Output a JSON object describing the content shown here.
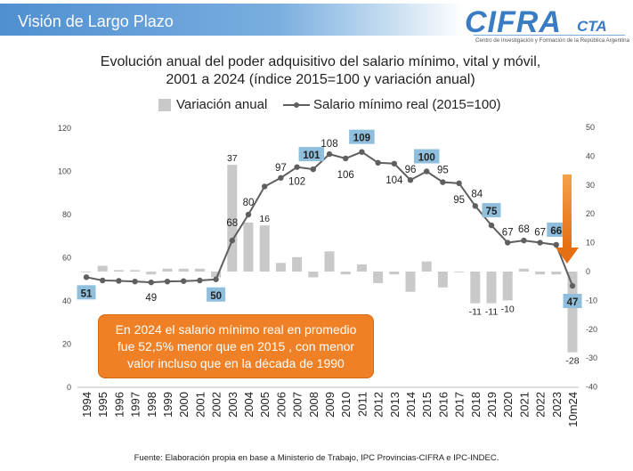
{
  "header": {
    "title": "Visión de Largo Plazo"
  },
  "logo": {
    "main": "CIFRA",
    "suffix": "CTA",
    "subtitle": "Centro de Investigación y Formación de la República Argentina"
  },
  "title_line1": "Evolución anual del poder adquisitivo del salario mínimo, vital y móvil,",
  "title_line2": "2001 a 2024 (índice 2015=100 y variación anual)",
  "legend": {
    "bars": "Variación anual",
    "line": "Salario mínimo real (2015=100)"
  },
  "annotation": "En 2024 el salario mínimo real en promedio fue 52,5% menor que en 2015 , con menor valor incluso que en la década de 1990",
  "source": "Fuente: Elaboración propia en base a Ministerio de Trabajo, IPC Provincias-CIFRA e IPC-INDEC.",
  "colors": {
    "bars": "#c9c9c9",
    "line": "#5f5f5f",
    "highlight": "#8fbfdc",
    "annotation": "#ef8025",
    "arrow": "#ef8025"
  },
  "chart_data": {
    "type": "bar+line",
    "categories": [
      "1994",
      "1995",
      "1996",
      "1997",
      "1998",
      "1999",
      "2000",
      "2001",
      "2002",
      "2003",
      "2004",
      "2005",
      "2006",
      "2007",
      "2008",
      "2009",
      "2010",
      "2011",
      "2012",
      "2013",
      "2014",
      "2015",
      "2016",
      "2017",
      "2018",
      "2019",
      "2020",
      "2021",
      "2022",
      "2023",
      "10m24"
    ],
    "series": [
      {
        "name": "Variación anual",
        "axis": "right",
        "type": "bar",
        "values": [
          0,
          2,
          0.5,
          0.5,
          -1,
          1,
          1,
          1,
          -2,
          37,
          17,
          16,
          3,
          5,
          -2,
          7,
          -1,
          2.5,
          -4,
          -1,
          -7,
          3.5,
          -5.5,
          0,
          -11,
          -11,
          -10,
          1,
          -1,
          -1,
          -28
        ]
      },
      {
        "name": "Salario mínimo real (2015=100)",
        "axis": "left",
        "type": "line",
        "values": [
          51,
          49.5,
          49.3,
          49,
          48.6,
          49,
          49.2,
          49.5,
          50,
          68,
          80,
          93,
          97,
          102,
          101,
          108,
          106,
          109,
          104,
          103.6,
          96,
          100,
          95,
          94.5,
          84,
          75,
          67,
          68,
          67,
          66,
          47
        ]
      }
    ],
    "point_labels": [
      {
        "category": "1994",
        "text": "51",
        "highlight": true
      },
      {
        "category": "1998",
        "text": "49",
        "highlight": false
      },
      {
        "category": "2002",
        "text": "50",
        "highlight": true
      },
      {
        "category": "2003",
        "text": "68",
        "highlight": false
      },
      {
        "category": "2004",
        "text": "80",
        "highlight": false
      },
      {
        "category": "2006",
        "text": "97",
        "highlight": false
      },
      {
        "category": "2007",
        "text": "102",
        "highlight": false
      },
      {
        "category": "2008",
        "text": "101",
        "highlight": true
      },
      {
        "category": "2009",
        "text": "108",
        "highlight": false
      },
      {
        "category": "2010",
        "text": "106",
        "highlight": false
      },
      {
        "category": "2011",
        "text": "109",
        "highlight": true
      },
      {
        "category": "2013",
        "text": "104",
        "highlight": false
      },
      {
        "category": "2014",
        "text": "96",
        "highlight": false
      },
      {
        "category": "2015",
        "text": "100",
        "highlight": true
      },
      {
        "category": "2016",
        "text": "95",
        "highlight": false
      },
      {
        "category": "2017",
        "text": "95",
        "highlight": false
      },
      {
        "category": "2018",
        "text": "84",
        "highlight": false
      },
      {
        "category": "2019",
        "text": "75",
        "highlight": true
      },
      {
        "category": "2020",
        "text": "67",
        "highlight": false
      },
      {
        "category": "2021",
        "text": "68",
        "highlight": false
      },
      {
        "category": "2022",
        "text": "67",
        "highlight": false
      },
      {
        "category": "2023",
        "text": "66",
        "highlight": true
      },
      {
        "category": "10m24",
        "text": "47",
        "highlight": true
      }
    ],
    "bar_labels": [
      {
        "category": "2003",
        "text": "37"
      },
      {
        "category": "2005",
        "text": "16"
      },
      {
        "category": "2018",
        "text": "-11"
      },
      {
        "category": "2019",
        "text": "-11"
      },
      {
        "category": "2020",
        "text": "-10"
      },
      {
        "category": "10m24",
        "text": "-28"
      }
    ],
    "yleft": {
      "lim": [
        0,
        120
      ],
      "ticks": [
        "0",
        "20",
        "40",
        "60",
        "80",
        "100",
        "120"
      ]
    },
    "yright": {
      "lim": [
        -40,
        50
      ],
      "ticks": [
        "-40",
        "-30",
        "-20",
        "-10",
        "0",
        "10",
        "20",
        "30",
        "40",
        "50"
      ]
    },
    "title": "Evolución anual del poder adquisitivo del salario mínimo, vital y móvil, 2001 a 2024 (índice 2015=100 y variación anual)"
  }
}
